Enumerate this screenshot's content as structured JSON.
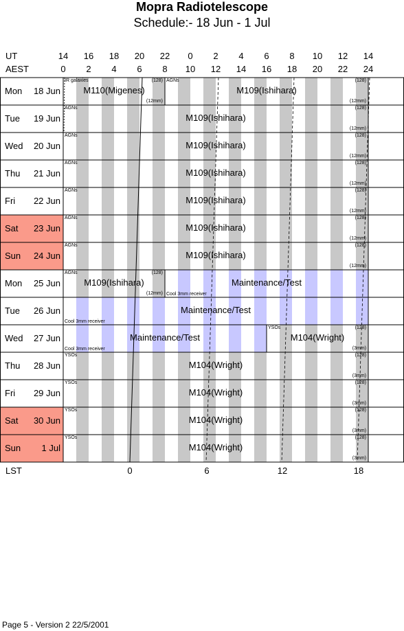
{
  "title": "Mopra Radiotelescope",
  "subtitle": "Schedule:- 18 Jun - 1  Jul",
  "ut_label": "UT",
  "aest_label": "AEST",
  "lst_label": "LST",
  "ut_ticks": [
    "14",
    "16",
    "18",
    "20",
    "22",
    "0",
    "2",
    "4",
    "6",
    "8",
    "10",
    "12",
    "14"
  ],
  "aest_ticks": [
    "0",
    "2",
    "4",
    "6",
    "8",
    "10",
    "12",
    "14",
    "16",
    "18",
    "20",
    "22",
    "24"
  ],
  "lst_ticks": [
    "0",
    "6",
    "12",
    "18"
  ],
  "weekend_color": "#fa9a8a",
  "shade_color": "#c8c8c8",
  "maintenance_color": "#c8c8ff",
  "days": [
    {
      "dow": "Mon",
      "date": "18 Jun",
      "weekend": false
    },
    {
      "dow": "Tue",
      "date": "19 Jun",
      "weekend": false
    },
    {
      "dow": "Wed",
      "date": "20 Jun",
      "weekend": false
    },
    {
      "dow": "Thu",
      "date": "21 Jun",
      "weekend": false
    },
    {
      "dow": "Fri",
      "date": "22 Jun",
      "weekend": false
    },
    {
      "dow": "Sat",
      "date": "23 Jun",
      "weekend": true
    },
    {
      "dow": "Sun",
      "date": "24 Jun",
      "weekend": true
    },
    {
      "dow": "Mon",
      "date": "25 Jun",
      "weekend": false
    },
    {
      "dow": "Tue",
      "date": "26 Jun",
      "weekend": false
    },
    {
      "dow": "Wed",
      "date": "27 Jun",
      "weekend": false
    },
    {
      "dow": "Thu",
      "date": "28 Jun",
      "weekend": false
    },
    {
      "dow": "Fri",
      "date": "29 Jun",
      "weekend": false
    },
    {
      "dow": "Sat",
      "date": "30 Jun",
      "weekend": true
    },
    {
      "dow": "Sun",
      "date": "1  Jul",
      "weekend": true
    }
  ],
  "segments": [
    [
      {
        "start": 0,
        "end": 8,
        "label": "M110(Migenes)",
        "tl": "IR galaxies",
        "tr": "(128)",
        "br": "(12mm)"
      },
      {
        "start": 8,
        "end": 24,
        "label": "M109(Ishihara)",
        "tl": "AGNs",
        "tr": "(128)",
        "br": "(12mm)"
      }
    ],
    [
      {
        "start": 0,
        "end": 24,
        "label": "M109(Ishihara)",
        "tl": "AGNs",
        "tr": "(128)",
        "br": "(12mm)"
      }
    ],
    [
      {
        "start": 0,
        "end": 24,
        "label": "M109(Ishihara)",
        "tl": "AGNs",
        "tr": "(128)",
        "br": "(12mm)"
      }
    ],
    [
      {
        "start": 0,
        "end": 24,
        "label": "M109(Ishihara)",
        "tl": "AGNs",
        "tr": "(128)",
        "br": "(12mm)"
      }
    ],
    [
      {
        "start": 0,
        "end": 24,
        "label": "M109(Ishihara)",
        "tl": "AGNs",
        "tr": "(128)",
        "br": "(12mm)"
      }
    ],
    [
      {
        "start": 0,
        "end": 24,
        "label": "M109(Ishihara)",
        "tl": "AGNs",
        "tr": "(128)",
        "br": "(12mm)"
      }
    ],
    [
      {
        "start": 0,
        "end": 24,
        "label": "M109(Ishihara)",
        "tl": "AGNs",
        "tr": "(128)",
        "br": "(12mm)"
      }
    ],
    [
      {
        "start": 0,
        "end": 8,
        "label": "M109(Ishihara)",
        "tl": "AGNs",
        "tr": "(128)",
        "br": "(12mm)"
      },
      {
        "start": 8,
        "end": 24,
        "label": "Maintenance/Test",
        "bl": "Cool 3mm receiver",
        "maint": true
      }
    ],
    [
      {
        "start": 0,
        "end": 24,
        "label": "Maintenance/Test",
        "bl": "Cool 3mm receiver",
        "maint": true
      }
    ],
    [
      {
        "start": 0,
        "end": 16,
        "label": "Maintenance/Test",
        "bl": "Cool 3mm receiver",
        "maint": true
      },
      {
        "start": 16,
        "end": 24,
        "label": "M104(Wright)",
        "tl": "YSOs",
        "tr": "(128)",
        "br": "(3mm)"
      }
    ],
    [
      {
        "start": 0,
        "end": 24,
        "label": "M104(Wright)",
        "tl": "YSOs",
        "tr": "(128)",
        "br": "(3mm)"
      }
    ],
    [
      {
        "start": 0,
        "end": 24,
        "label": "M104(Wright)",
        "tl": "YSOs",
        "tr": "(128)",
        "br": "(3mm)"
      }
    ],
    [
      {
        "start": 0,
        "end": 24,
        "label": "M104(Wright)",
        "tl": "YSOs",
        "tr": "(128)",
        "br": "(3mm)"
      }
    ],
    [
      {
        "start": 0,
        "end": 24,
        "label": "M104(Wright)",
        "tl": "YSOs",
        "tr": "(128)",
        "br": "(3mm)"
      }
    ]
  ],
  "footer": "Page 5 - Version 2  22/5/2001"
}
